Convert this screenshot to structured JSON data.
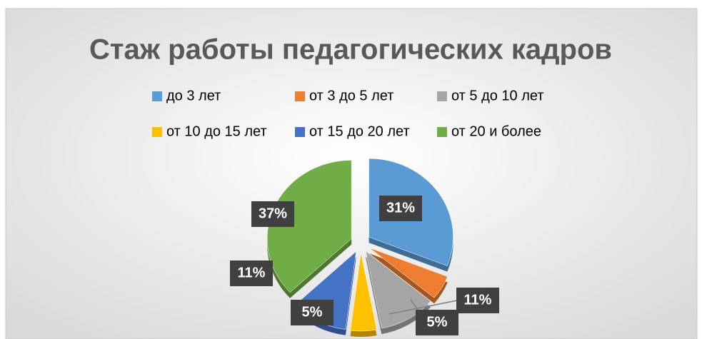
{
  "chart_data": {
    "type": "pie",
    "title": "Стаж работы педагогических кадров",
    "categories": [
      "до 3 лет",
      "от 3 до 5 лет",
      "от 5 до 10 лет",
      "от 10 до 15 лет",
      "от 15 до 20 лет",
      "от 20 и более"
    ],
    "values": [
      31,
      5,
      11,
      5,
      11,
      37
    ],
    "value_labels": [
      "31%",
      "5%",
      "11%",
      "5%",
      "11%",
      "37%"
    ],
    "colors": [
      "#5b9bd5",
      "#ed7d31",
      "#a5a5a5",
      "#ffc000",
      "#4472c4",
      "#70ad47"
    ]
  }
}
